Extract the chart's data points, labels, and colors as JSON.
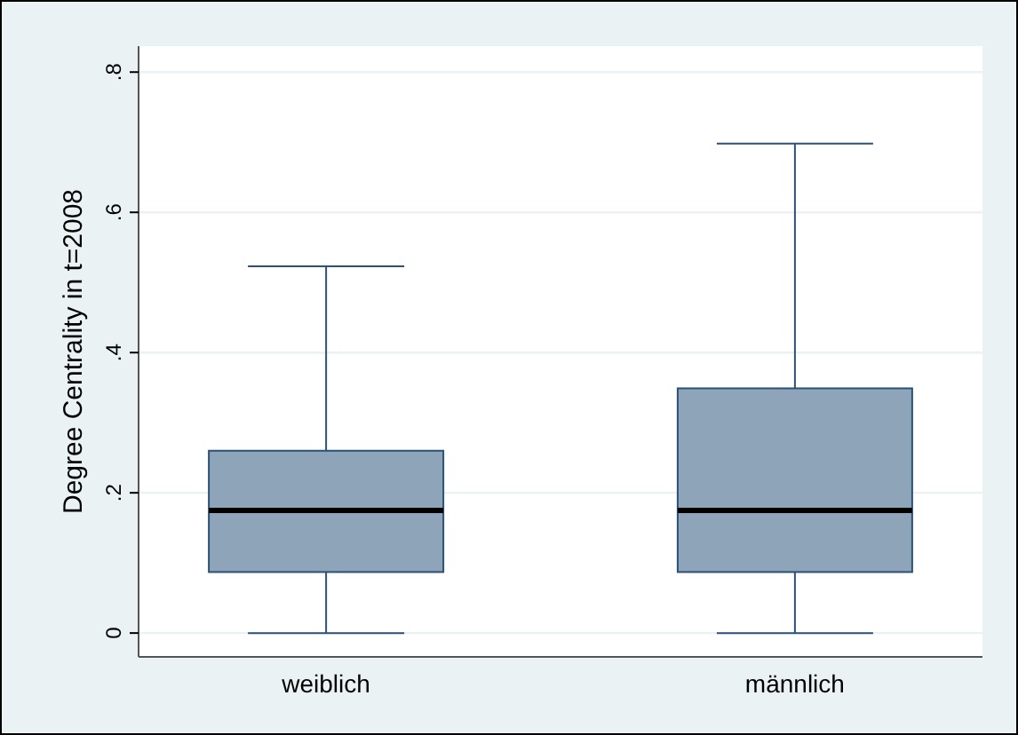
{
  "chart_data": {
    "type": "box",
    "ylabel": "Degree Centrality in t=2008",
    "categories": [
      "weiblich",
      "männlich"
    ],
    "boxes": [
      {
        "low": 0,
        "q1": 0.087,
        "median": 0.175,
        "q3": 0.26,
        "high": 0.523
      },
      {
        "low": 0,
        "q1": 0.087,
        "median": 0.175,
        "q3": 0.349,
        "high": 0.698
      }
    ],
    "color": "#8ea4b8",
    "ylim": [
      -0.034,
      0.837
    ],
    "yticks": [
      {
        "value": 0,
        "label": "0"
      },
      {
        "value": 0.2,
        "label": ".2"
      },
      {
        "value": 0.4,
        "label": ".4"
      },
      {
        "value": 0.6,
        "label": ".6"
      },
      {
        "value": 0.8,
        "label": ".8"
      }
    ],
    "grid": "y"
  }
}
